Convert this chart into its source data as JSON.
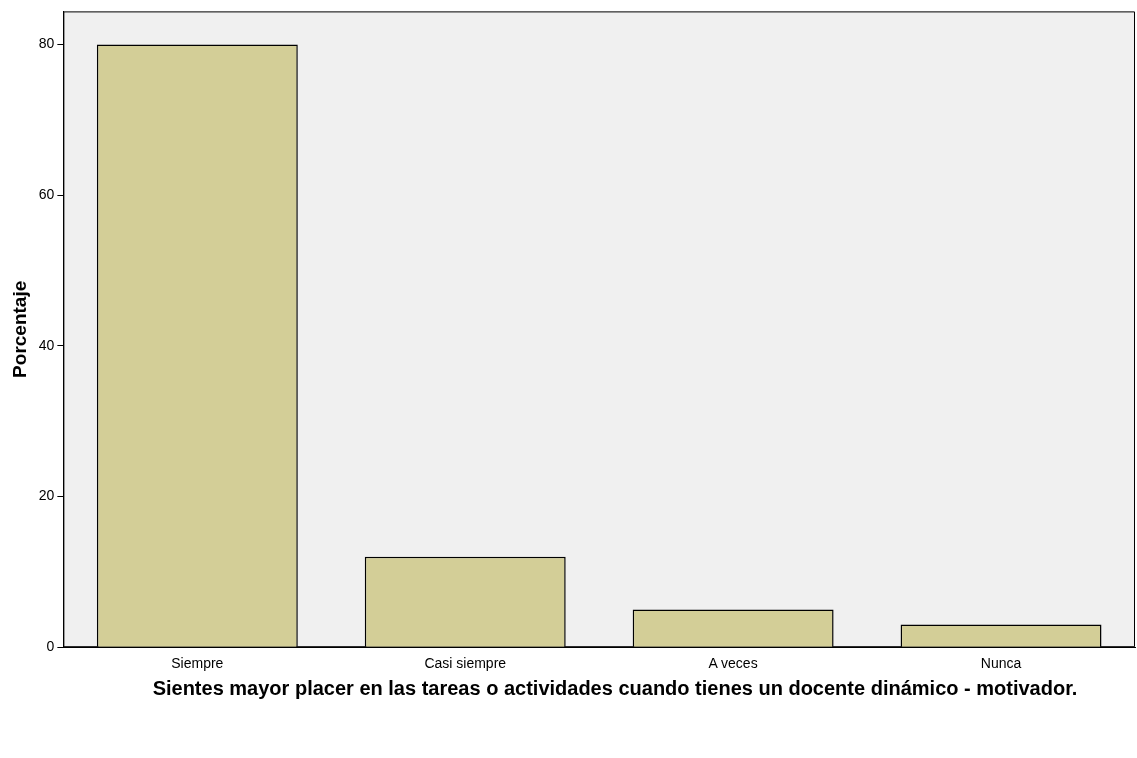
{
  "chart_data": {
    "type": "bar",
    "xlabel": "Sientes mayor placer en las tareas o actividades cuando tienes un docente dinámico - motivador.",
    "ylabel": "Porcentaje",
    "categories": [
      "Siempre",
      "Casi siempre",
      "A veces",
      "Nunca"
    ],
    "values": [
      80,
      12,
      5,
      3
    ],
    "color": "#d3ce97",
    "ylim": [
      0,
      84.4
    ],
    "yticks": [
      0,
      20,
      40,
      60,
      80
    ],
    "grid": false,
    "legend": false
  }
}
